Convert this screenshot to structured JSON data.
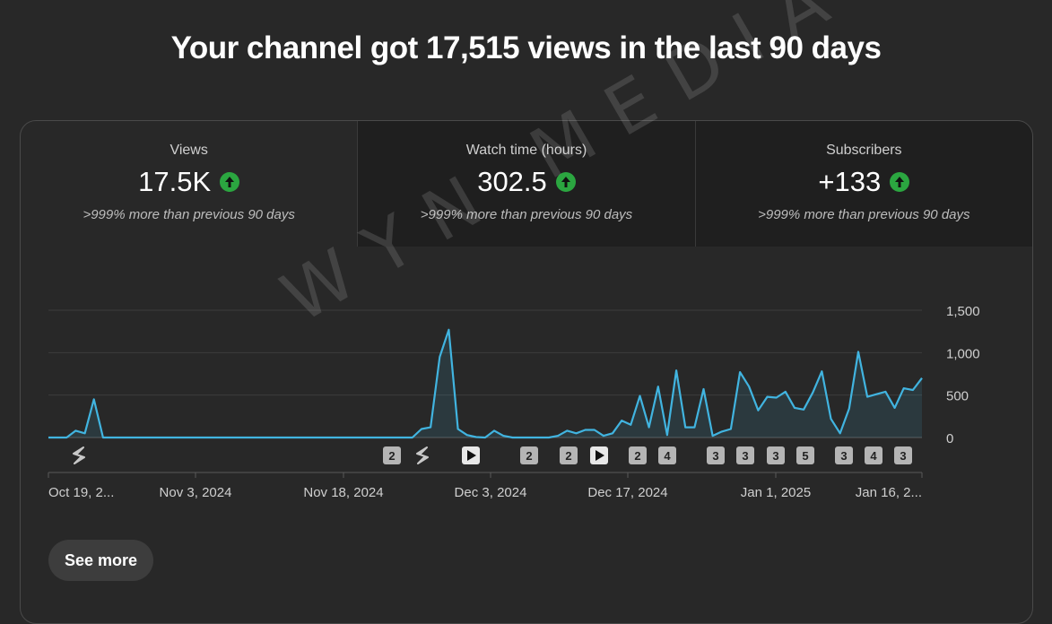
{
  "headline": "Your channel got 17,515 views in the last 90 days",
  "tabs": [
    {
      "label": "Views",
      "value": "17.5K",
      "compare": ">999% more than previous 90 days",
      "trend_icon": "arrow-up-circle-icon"
    },
    {
      "label": "Watch time (hours)",
      "value": "302.5",
      "compare": ">999% more than previous 90 days",
      "trend_icon": "arrow-up-circle-icon"
    },
    {
      "label": "Subscribers",
      "value": "+133",
      "compare": ">999% more than previous 90 days",
      "trend_icon": "arrow-up-circle-icon"
    }
  ],
  "colors": {
    "line": "#41b4e0",
    "trend_up": "#2ba640",
    "background": "#282828"
  },
  "watermark": "WYN MEDIA",
  "see_more": "See more",
  "chart_data": {
    "type": "line",
    "series": [
      {
        "values": [
          0,
          0,
          0,
          80,
          50,
          450,
          0,
          0,
          0,
          0,
          0,
          0,
          0,
          0,
          0,
          0,
          0,
          0,
          0,
          0,
          0,
          0,
          0,
          0,
          0,
          0,
          0,
          0,
          0,
          0,
          0,
          0,
          0,
          0,
          0,
          0,
          0,
          0,
          0,
          0,
          0,
          100,
          120,
          950,
          1270,
          100,
          30,
          5,
          0,
          80,
          20,
          0,
          0,
          0,
          0,
          0,
          20,
          80,
          50,
          90,
          90,
          20,
          50,
          200,
          150,
          490,
          120,
          600,
          30,
          790,
          120,
          120,
          570,
          20,
          70,
          100,
          770,
          600,
          320,
          480,
          470,
          540,
          350,
          330,
          530,
          780,
          220,
          50,
          340,
          1010,
          480,
          510,
          540,
          350,
          580,
          560,
          700
        ]
      }
    ],
    "x_tick_labels": [
      "Oct 19, 2...",
      "Nov 3, 2024",
      "Nov 18, 2024",
      "Dec 3, 2024",
      "Dec 17, 2024",
      "Jan 1, 2025",
      "Jan 16, 2..."
    ],
    "y_tick_labels": [
      "0",
      "500",
      "1,000",
      "1,500"
    ],
    "ylim": [
      0,
      1500
    ],
    "upload_markers": [
      {
        "type": "short",
        "label": ""
      },
      {
        "type": "count",
        "label": "2"
      },
      {
        "type": "short",
        "label": ""
      },
      {
        "type": "video",
        "label": ""
      },
      {
        "type": "count",
        "label": "2"
      },
      {
        "type": "count",
        "label": "2"
      },
      {
        "type": "video",
        "label": ""
      },
      {
        "type": "count",
        "label": "2"
      },
      {
        "type": "count",
        "label": "4"
      },
      {
        "type": "count",
        "label": "3"
      },
      {
        "type": "count",
        "label": "3"
      },
      {
        "type": "count",
        "label": "3"
      },
      {
        "type": "count",
        "label": "5"
      },
      {
        "type": "count",
        "label": "3"
      },
      {
        "type": "count",
        "label": "4"
      },
      {
        "type": "count",
        "label": "3"
      }
    ]
  }
}
